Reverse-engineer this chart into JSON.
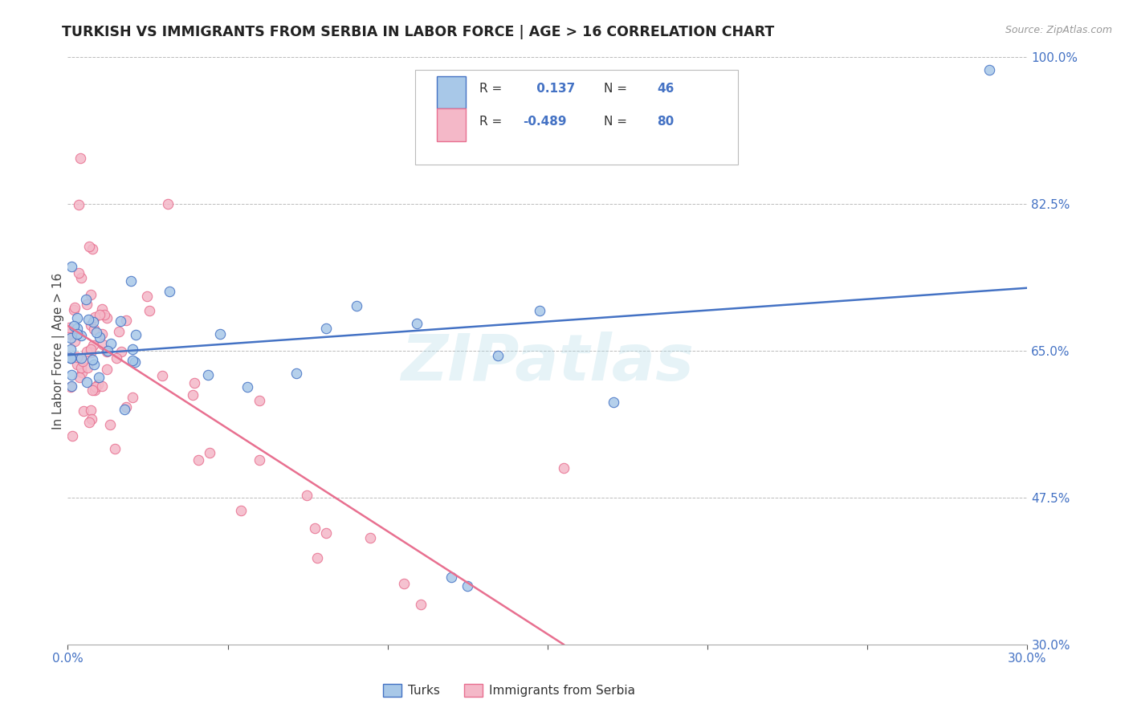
{
  "title": "TURKISH VS IMMIGRANTS FROM SERBIA IN LABOR FORCE | AGE > 16 CORRELATION CHART",
  "source": "Source: ZipAtlas.com",
  "ylabel": "In Labor Force | Age > 16",
  "xlim": [
    0.0,
    30.0
  ],
  "ylim": [
    30.0,
    100.0
  ],
  "xticks": [
    0.0,
    5.0,
    10.0,
    15.0,
    20.0,
    25.0,
    30.0
  ],
  "xticklabels": [
    "0.0%",
    "",
    "",
    "",
    "",
    "",
    "30.0%"
  ],
  "yticks": [
    30.0,
    47.5,
    65.0,
    82.5,
    100.0
  ],
  "yticklabels": [
    "30.0%",
    "47.5%",
    "65.0%",
    "82.5%",
    "100.0%"
  ],
  "turks_color": "#A8C8E8",
  "turks_edge": "#4472C4",
  "serbia_color": "#F4B8C8",
  "serbia_edge": "#E87090",
  "trend_turks_color": "#4472C4",
  "trend_serbia_color": "#E87090",
  "R_turks": 0.137,
  "N_turks": 46,
  "R_serbia": -0.489,
  "N_serbia": 80,
  "watermark": "ZIPatlas",
  "legend_label_turks": "Turks",
  "legend_label_serbia": "Immigrants from Serbia",
  "background_color": "#ffffff",
  "grid_color": "#bbbbbb",
  "turks_trend_x0": 0.0,
  "turks_trend_y0": 64.5,
  "turks_trend_x1": 30.0,
  "turks_trend_y1": 72.5,
  "serbia_trend_x0": 0.0,
  "serbia_trend_y0": 68.0,
  "serbia_trend_x1": 15.5,
  "serbia_trend_y1": 30.0
}
